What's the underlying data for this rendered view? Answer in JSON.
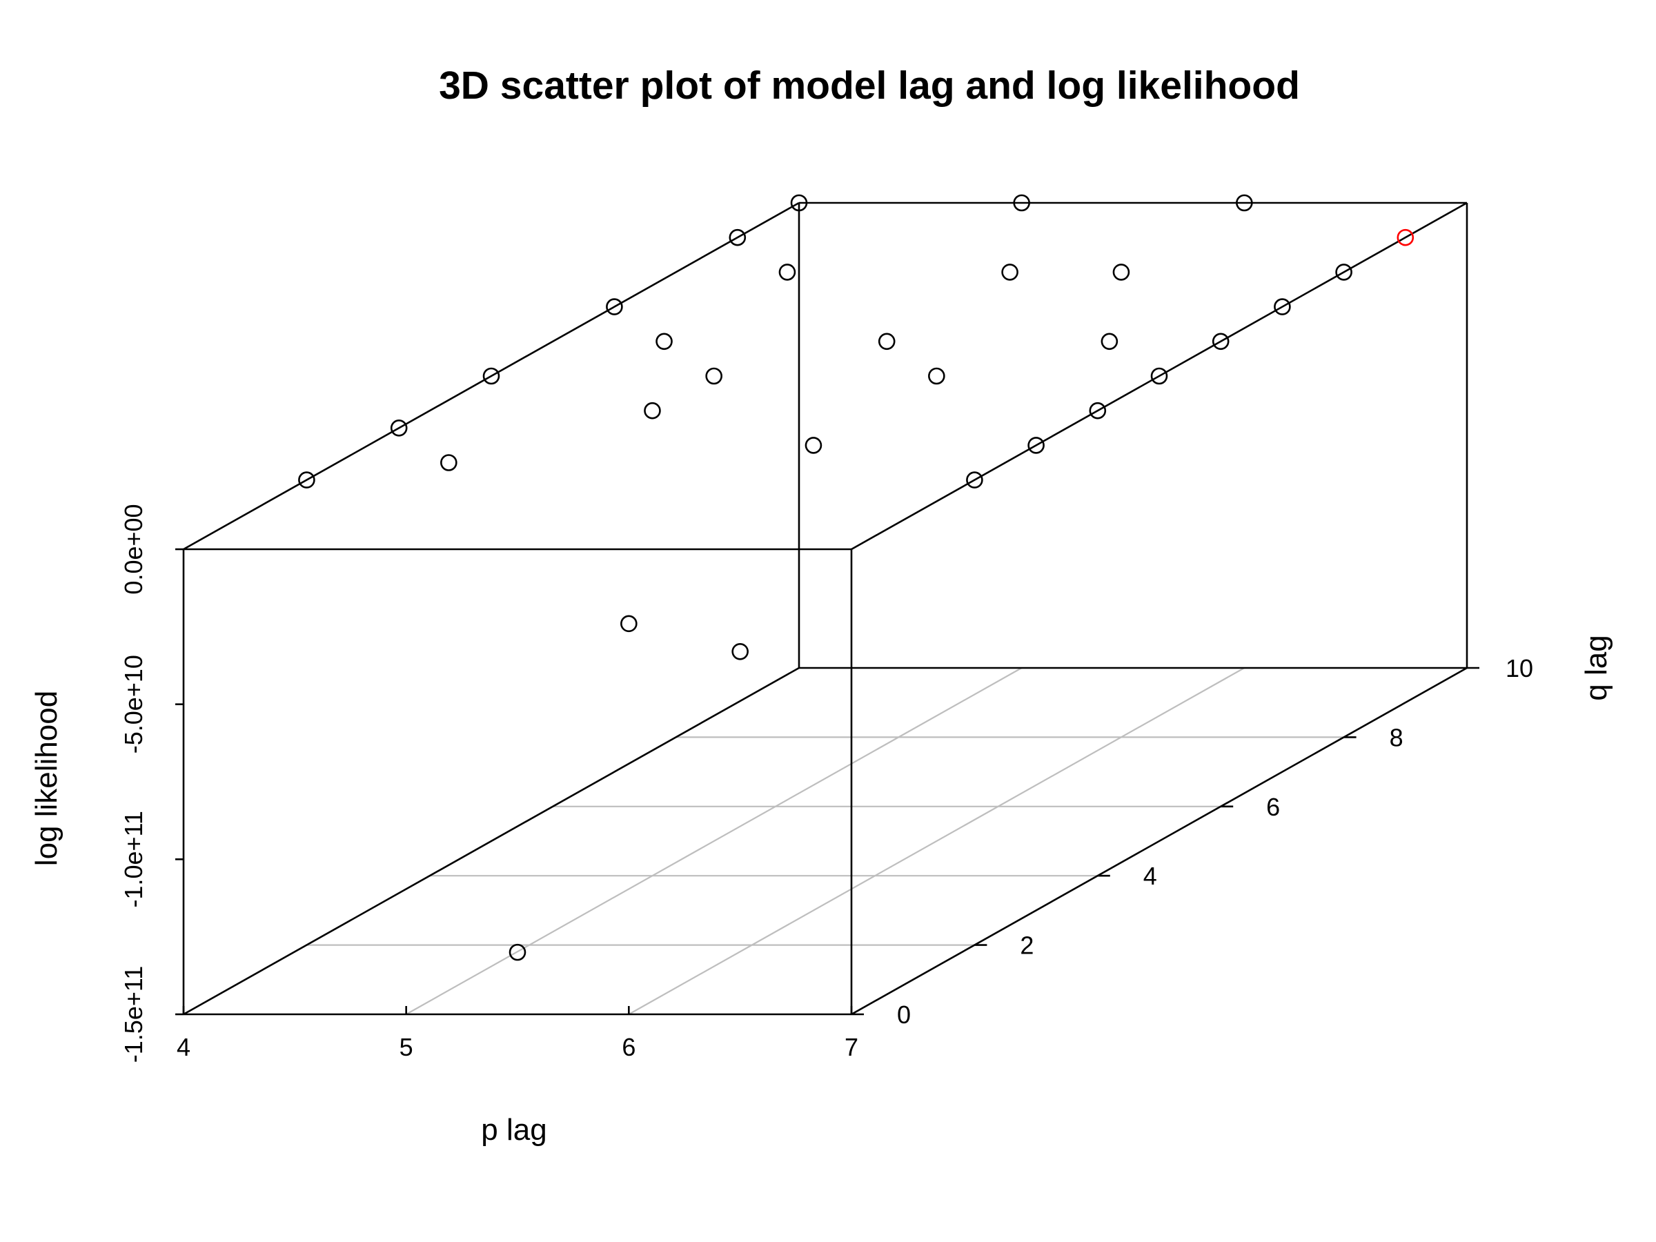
{
  "chart_data": {
    "type": "scatter",
    "title": "3D scatter plot of model lag and log likelihood",
    "xlabel": "p lag",
    "ylabel": "q lag",
    "zlabel": "log likelihood",
    "xlim": [
      4,
      7
    ],
    "ylim": [
      0,
      10
    ],
    "zlim": [
      -150000000000,
      0
    ],
    "x_ticks": [
      "4",
      "5",
      "6",
      "7"
    ],
    "y_ticks": [
      "0",
      "2",
      "4",
      "6",
      "8",
      "10"
    ],
    "z_ticks": [
      "-1.5e+11",
      "-1.0e+11",
      "-5.0e+10",
      "0.0e+00"
    ],
    "grid": true,
    "point_color": "#000000",
    "highlight_color": "#ff0000",
    "points": [
      {
        "x": 4,
        "y": 10,
        "z": 0
      },
      {
        "x": 5,
        "y": 10,
        "z": 0
      },
      {
        "x": 6,
        "y": 10,
        "z": 0
      },
      {
        "x": 7,
        "y": 9,
        "z": 0,
        "highlight": true
      },
      {
        "x": 4,
        "y": 9,
        "z": 0
      },
      {
        "x": 4.5,
        "y": 8,
        "z": 0
      },
      {
        "x": 5.5,
        "y": 8,
        "z": 0
      },
      {
        "x": 6,
        "y": 8,
        "z": 0
      },
      {
        "x": 4,
        "y": 7,
        "z": 0
      },
      {
        "x": 4.5,
        "y": 6,
        "z": 0
      },
      {
        "x": 5.5,
        "y": 6,
        "z": 0
      },
      {
        "x": 6.5,
        "y": 6,
        "z": 0
      },
      {
        "x": 4,
        "y": 5,
        "z": 0
      },
      {
        "x": 5,
        "y": 5,
        "z": 0
      },
      {
        "x": 6,
        "y": 5,
        "z": 0
      },
      {
        "x": 4,
        "y": 3.5,
        "z": 0
      },
      {
        "x": 4.5,
        "y": 2.5,
        "z": 0
      },
      {
        "x": 5,
        "y": 4,
        "z": 0
      },
      {
        "x": 4,
        "y": 2,
        "z": 0
      },
      {
        "x": 6,
        "y": 3,
        "z": 0
      },
      {
        "x": 7,
        "y": 8,
        "z": 0
      },
      {
        "x": 7,
        "y": 7,
        "z": 0
      },
      {
        "x": 7,
        "y": 6,
        "z": 0
      },
      {
        "x": 7,
        "y": 5,
        "z": 0
      },
      {
        "x": 7,
        "y": 4,
        "z": 0
      },
      {
        "x": 7,
        "y": 3,
        "z": 0
      },
      {
        "x": 7,
        "y": 2,
        "z": 0
      },
      {
        "x": 6,
        "y": 0,
        "z": -24000000000
      },
      {
        "x": 6.5,
        "y": 0,
        "z": -33000000000
      },
      {
        "x": 5.5,
        "y": 0,
        "z": -130000000000
      }
    ]
  }
}
